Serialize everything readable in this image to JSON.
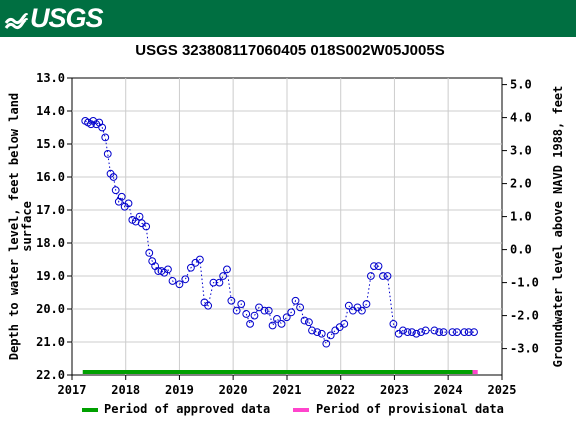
{
  "header": {
    "logo_text": "USGS"
  },
  "chart_data": {
    "type": "scatter",
    "title": "USGS 323808117060405 018S002W05J005S",
    "ylabel": "Depth to water level, feet below land surface",
    "y2label": "Groundwater level above NAVD 1988, feet",
    "xlim": [
      "2017-01-01",
      "2025-01-01"
    ],
    "ylim": [
      22.0,
      13.0
    ],
    "y2lim": [
      -3.8,
      5.2
    ],
    "x_ticks": [
      "2017",
      "2018",
      "2019",
      "2020",
      "2021",
      "2022",
      "2023",
      "2024",
      "2025"
    ],
    "y_ticks": [
      "13.0",
      "14.0",
      "15.0",
      "16.0",
      "17.0",
      "18.0",
      "19.0",
      "20.0",
      "21.0",
      "22.0"
    ],
    "y2_ticks": [
      "5.0",
      "4.0",
      "3.0",
      "2.0",
      "1.0",
      "0.0",
      "-1.0",
      "-2.0",
      "-3.0"
    ],
    "series": [
      {
        "marker": "open-circle",
        "line": "dotted",
        "color": "#0000cc",
        "x": [
          "2017-04-01",
          "2017-04-20",
          "2017-05-10",
          "2017-05-25",
          "2017-06-15",
          "2017-07-05",
          "2017-07-25",
          "2017-08-15",
          "2017-09-01",
          "2017-09-20",
          "2017-10-10",
          "2017-10-25",
          "2017-11-15",
          "2017-12-05",
          "2017-12-25",
          "2018-01-20",
          "2018-02-15",
          "2018-03-10",
          "2018-04-05",
          "2018-04-20",
          "2018-05-20",
          "2018-06-10",
          "2018-06-30",
          "2018-07-20",
          "2018-08-10",
          "2018-09-01",
          "2018-09-20",
          "2018-10-15",
          "2018-11-15",
          "2019-01-01",
          "2019-02-10",
          "2019-03-20",
          "2019-04-20",
          "2019-05-20",
          "2019-06-20",
          "2019-07-15",
          "2019-08-20",
          "2019-09-30",
          "2019-10-25",
          "2019-11-20",
          "2019-12-20",
          "2020-01-25",
          "2020-02-25",
          "2020-03-30",
          "2020-04-25",
          "2020-05-25",
          "2020-06-25",
          "2020-08-01",
          "2020-08-30",
          "2020-09-25",
          "2020-10-25",
          "2020-11-25",
          "2020-12-30",
          "2021-01-30",
          "2021-02-28",
          "2021-03-31",
          "2021-04-30",
          "2021-05-30",
          "2021-06-20",
          "2021-07-25",
          "2021-08-25",
          "2021-09-25",
          "2021-10-25",
          "2021-11-25",
          "2021-12-25",
          "2022-01-25",
          "2022-02-25",
          "2022-03-25",
          "2022-04-25",
          "2022-05-25",
          "2022-06-25",
          "2022-07-25",
          "2022-08-15",
          "2022-09-15",
          "2022-10-15",
          "2022-11-15",
          "2022-12-25",
          "2023-01-30",
          "2023-02-28",
          "2023-03-31",
          "2023-04-30",
          "2023-05-30",
          "2023-07-01",
          "2023-08-01",
          "2023-09-30",
          "2023-11-01",
          "2023-12-01",
          "2024-01-30",
          "2024-03-01",
          "2024-04-20",
          "2024-05-20",
          "2024-06-25"
        ],
        "y": [
          14.3,
          14.35,
          14.4,
          14.3,
          14.4,
          14.35,
          14.5,
          14.8,
          15.3,
          15.9,
          16.0,
          16.4,
          16.75,
          16.6,
          16.9,
          16.8,
          17.3,
          17.35,
          17.2,
          17.4,
          17.5,
          18.3,
          18.55,
          18.7,
          18.85,
          18.85,
          18.9,
          18.8,
          19.15,
          19.25,
          19.1,
          18.75,
          18.6,
          18.5,
          19.8,
          19.9,
          19.2,
          19.2,
          19.0,
          18.8,
          19.75,
          20.05,
          19.85,
          20.15,
          20.45,
          20.2,
          19.95,
          20.05,
          20.05,
          20.5,
          20.3,
          20.45,
          20.25,
          20.1,
          19.75,
          19.95,
          20.35,
          20.4,
          20.65,
          20.7,
          20.75,
          21.05,
          20.8,
          20.65,
          20.55,
          20.45,
          19.9,
          20.05,
          19.95,
          20.05,
          19.85,
          19.0,
          18.7,
          18.7,
          19.0,
          19.0,
          20.45,
          20.75,
          20.65,
          20.7,
          20.7,
          20.75,
          20.7,
          20.65,
          20.65,
          20.7,
          20.7,
          20.7,
          20.7,
          20.7,
          20.7,
          20.7
        ]
      }
    ],
    "periods": [
      {
        "label": "Period of approved data",
        "start": "2017-03-15",
        "end": "2024-06-15",
        "color": "#00a000"
      },
      {
        "label": "Period of provisional data",
        "start": "2024-06-15",
        "end": "2024-07-20",
        "color": "#ff44cc"
      }
    ],
    "grid": true,
    "legend": "bottom"
  }
}
